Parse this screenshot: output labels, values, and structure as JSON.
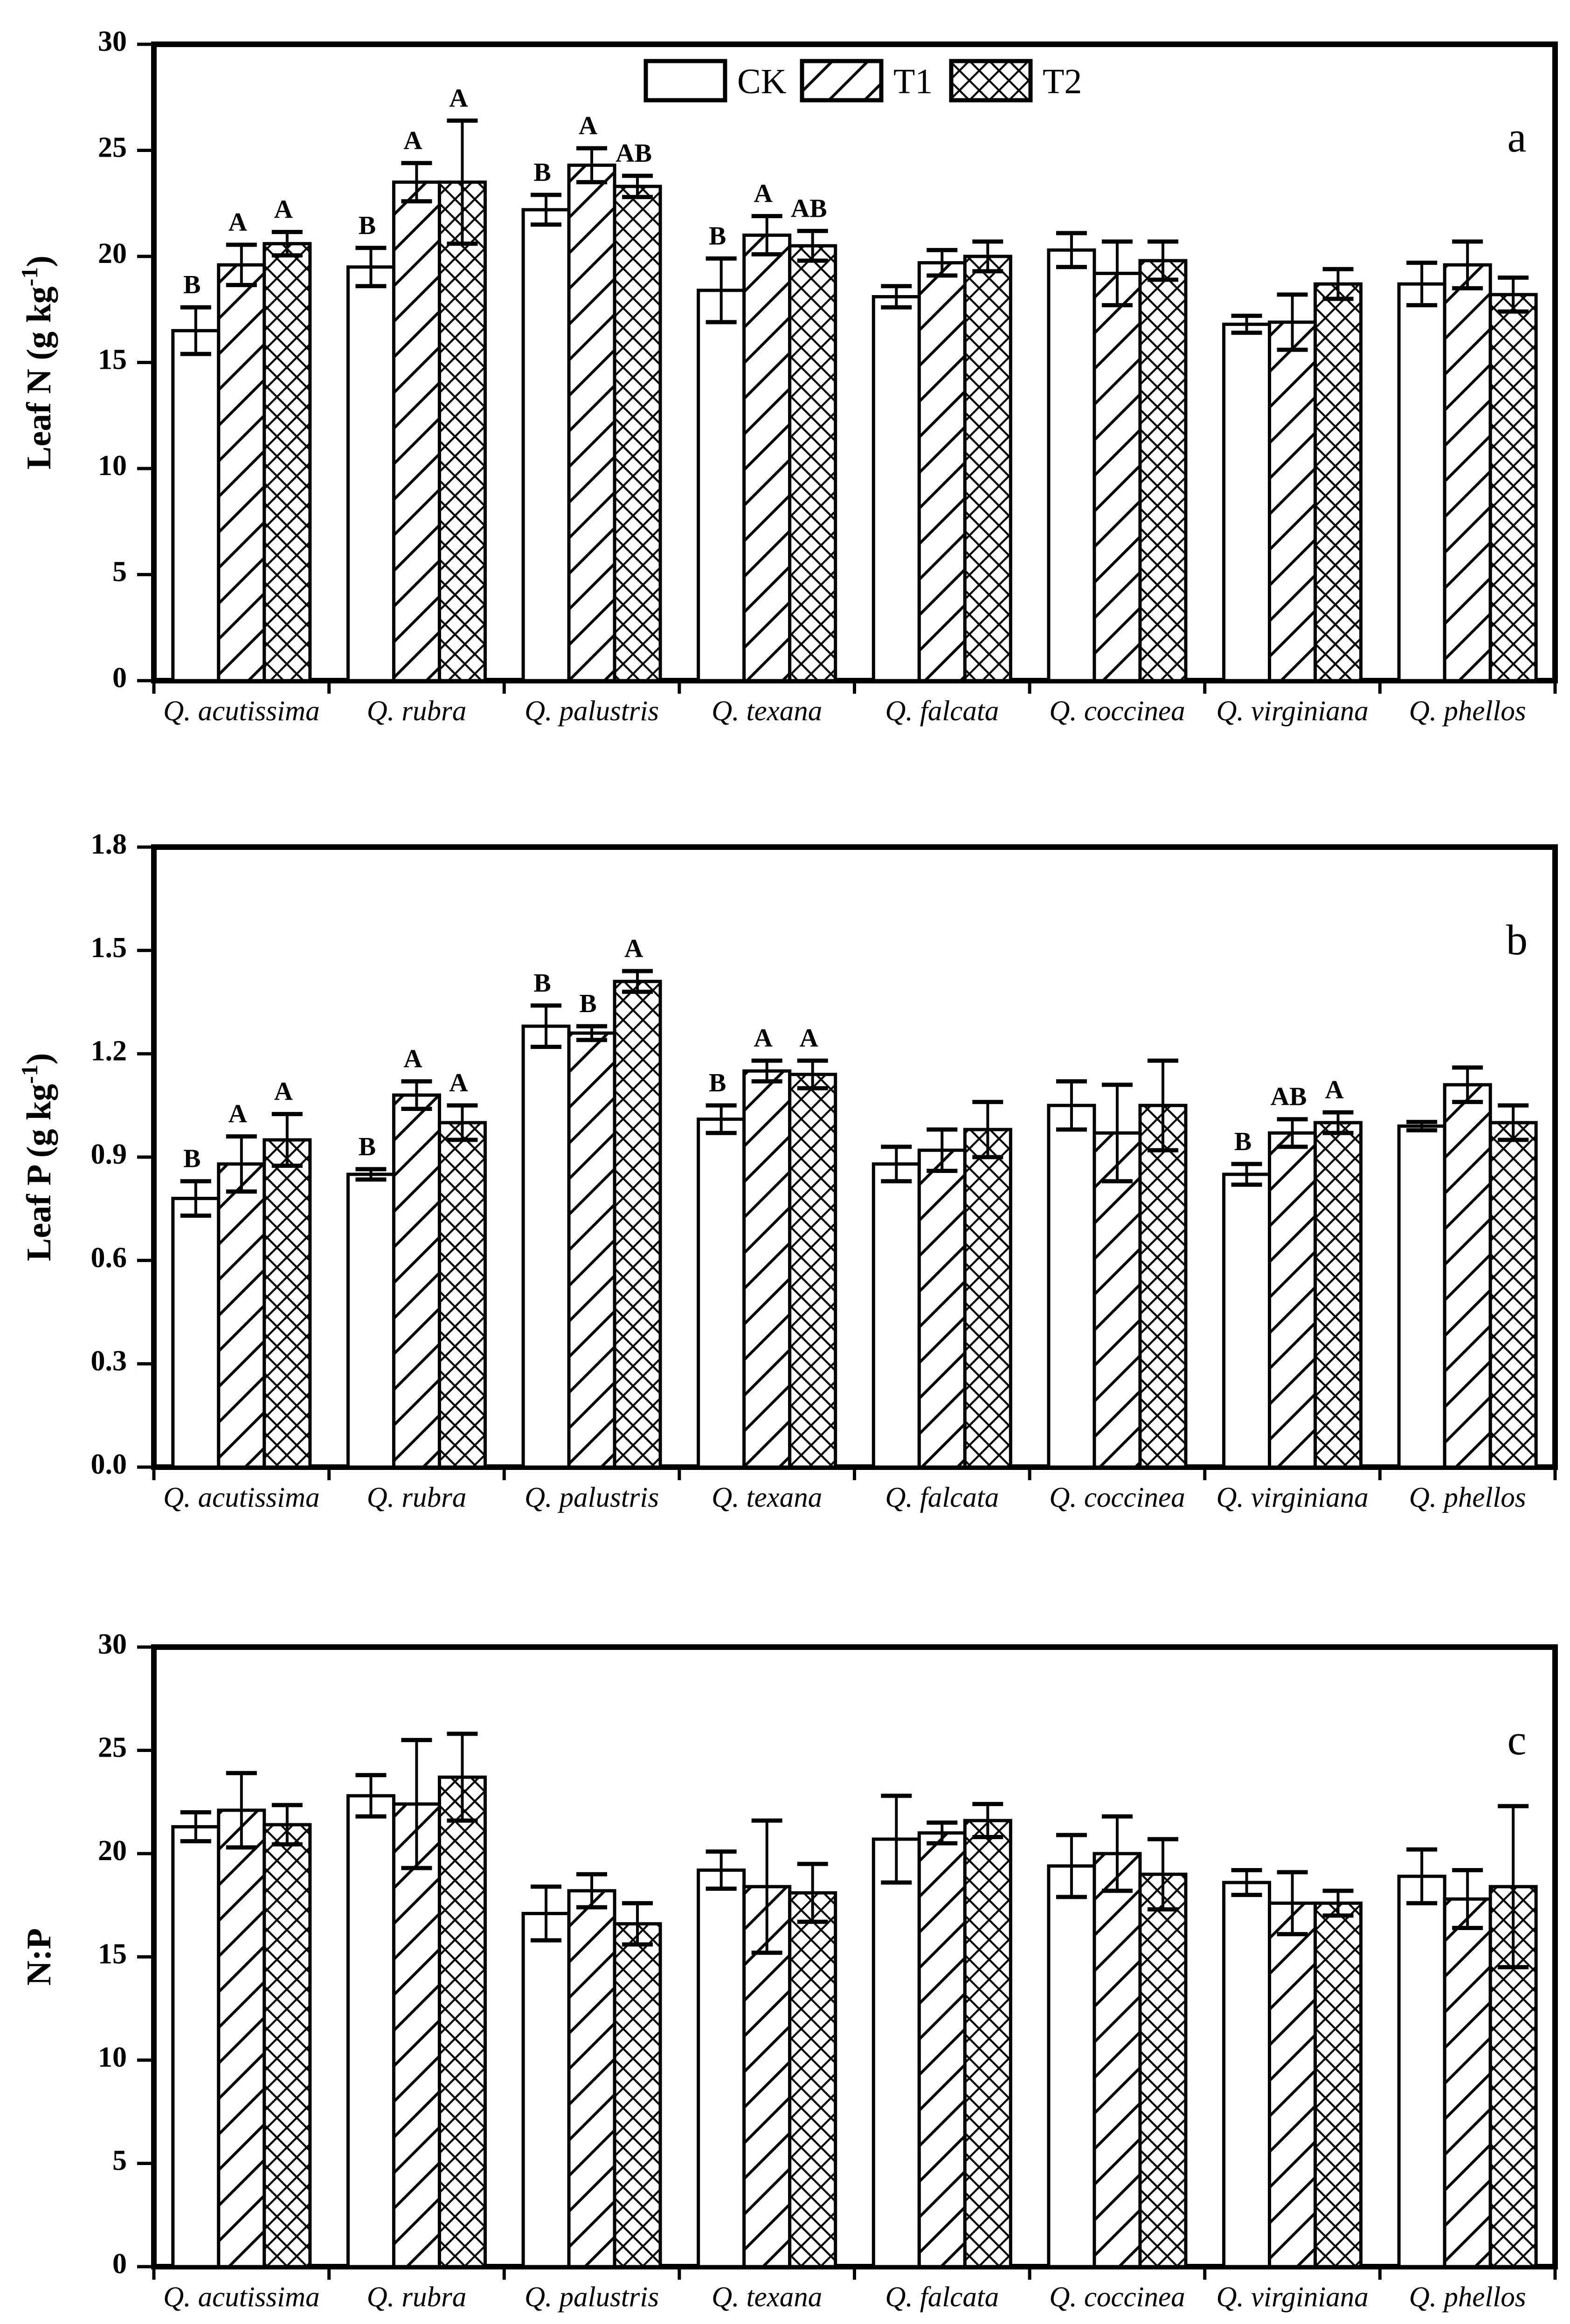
{
  "figure_kind": "three-panel grouped bar chart with error bars and significance letters",
  "colors": {
    "foreground": "#000000",
    "background": "#ffffff"
  },
  "legend": {
    "entries": [
      "CK",
      "T1",
      "T2"
    ],
    "position": "top-center-of-panel-a"
  },
  "categories": [
    "Q. acutissima",
    "Q. rubra",
    "Q. palustris",
    "Q. texana",
    "Q. falcata",
    "Q. coccinea",
    "Q. virginiana",
    "Q. phellos"
  ],
  "chart_data": [
    {
      "type": "bar",
      "panel_label": "a",
      "title": "",
      "xlabel": "",
      "ylabel": "Leaf N (g kg⁻¹)",
      "ylabel_parts": {
        "base": "Leaf N (g kg",
        "sup": "-1",
        "close": ")"
      },
      "ylim": [
        0,
        30
      ],
      "ytick_step": 5,
      "ytick_decimals": 0,
      "grid": false,
      "categories": [
        "Q. acutissima",
        "Q. rubra",
        "Q. palustris",
        "Q. texana",
        "Q. falcata",
        "Q. coccinea",
        "Q. virginiana",
        "Q. phellos"
      ],
      "series": [
        {
          "name": "CK",
          "hatch": "none",
          "values": [
            16.5,
            19.5,
            22.2,
            18.4,
            18.1,
            20.3,
            16.8,
            18.7
          ],
          "errors": [
            1.1,
            0.9,
            0.7,
            1.5,
            0.5,
            0.8,
            0.4,
            1.0
          ],
          "letters": [
            "B",
            "B",
            "B",
            "B",
            "",
            "",
            "",
            ""
          ]
        },
        {
          "name": "T1",
          "hatch": "diagonal",
          "values": [
            19.6,
            23.5,
            24.3,
            21.0,
            19.7,
            19.2,
            16.9,
            19.6
          ],
          "errors": [
            0.95,
            0.9,
            0.8,
            0.9,
            0.6,
            1.5,
            1.3,
            1.1
          ],
          "letters": [
            "A",
            "A",
            "A",
            "A",
            "",
            "",
            "",
            ""
          ]
        },
        {
          "name": "T2",
          "hatch": "crosshatch",
          "values": [
            20.6,
            23.5,
            23.3,
            20.5,
            20.0,
            19.8,
            18.7,
            18.2
          ],
          "errors": [
            0.55,
            2.9,
            0.5,
            0.7,
            0.7,
            0.9,
            0.7,
            0.8
          ],
          "letters": [
            "A",
            "A",
            "AB",
            "AB",
            "",
            "",
            "",
            ""
          ]
        }
      ],
      "show_legend": true
    },
    {
      "type": "bar",
      "panel_label": "b",
      "title": "",
      "xlabel": "",
      "ylabel": "Leaf P (g kg⁻¹)",
      "ylabel_parts": {
        "base": "Leaf P (g kg",
        "sup": "-1",
        "close": ")"
      },
      "ylim": [
        0,
        1.8
      ],
      "ytick_step": 0.3,
      "ytick_decimals": 1,
      "grid": false,
      "categories": [
        "Q. acutissima",
        "Q. rubra",
        "Q. palustris",
        "Q. texana",
        "Q. falcata",
        "Q. coccinea",
        "Q. virginiana",
        "Q. phellos"
      ],
      "series": [
        {
          "name": "CK",
          "hatch": "none",
          "values": [
            0.78,
            0.85,
            1.28,
            1.01,
            0.88,
            1.05,
            0.85,
            0.99
          ],
          "errors": [
            0.05,
            0.015,
            0.06,
            0.04,
            0.05,
            0.07,
            0.03,
            0.012
          ],
          "letters": [
            "B",
            "B",
            "B",
            "B",
            "",
            "",
            "B",
            ""
          ]
        },
        {
          "name": "T1",
          "hatch": "diagonal",
          "values": [
            0.88,
            1.08,
            1.26,
            1.15,
            0.92,
            0.97,
            0.97,
            1.11
          ],
          "errors": [
            0.08,
            0.04,
            0.02,
            0.03,
            0.06,
            0.14,
            0.04,
            0.05
          ],
          "letters": [
            "A",
            "A",
            "B",
            "A",
            "",
            "",
            "AB",
            ""
          ]
        },
        {
          "name": "T2",
          "hatch": "crosshatch",
          "values": [
            0.95,
            1.0,
            1.41,
            1.14,
            0.98,
            1.05,
            1.0,
            1.0
          ],
          "errors": [
            0.075,
            0.05,
            0.03,
            0.04,
            0.08,
            0.13,
            0.03,
            0.05
          ],
          "letters": [
            "A",
            "A",
            "A",
            "A",
            "",
            "",
            "A",
            ""
          ]
        }
      ],
      "show_legend": false
    },
    {
      "type": "bar",
      "panel_label": "c",
      "title": "",
      "xlabel": "",
      "ylabel": "N:P",
      "ylabel_parts": {
        "base": "N:P",
        "sup": "",
        "close": ""
      },
      "ylim": [
        0,
        30
      ],
      "ytick_step": 5,
      "ytick_decimals": 0,
      "grid": false,
      "categories": [
        "Q. acutissima",
        "Q. rubra",
        "Q. palustris",
        "Q. texana",
        "Q. falcata",
        "Q. coccinea",
        "Q. virginiana",
        "Q. phellos"
      ],
      "series": [
        {
          "name": "CK",
          "hatch": "none",
          "values": [
            21.3,
            22.8,
            17.1,
            19.2,
            20.7,
            19.4,
            18.6,
            18.9
          ],
          "errors": [
            0.7,
            1.0,
            1.3,
            0.9,
            2.1,
            1.5,
            0.6,
            1.3
          ],
          "letters": [
            "",
            "",
            "",
            "",
            "",
            "",
            "",
            ""
          ]
        },
        {
          "name": "T1",
          "hatch": "diagonal",
          "values": [
            22.1,
            22.4,
            18.2,
            18.4,
            21.0,
            20.0,
            17.6,
            17.8
          ],
          "errors": [
            1.8,
            3.1,
            0.8,
            3.2,
            0.5,
            1.8,
            1.5,
            1.4
          ],
          "letters": [
            "",
            "",
            "",
            "",
            "",
            "",
            "",
            ""
          ]
        },
        {
          "name": "T2",
          "hatch": "crosshatch",
          "values": [
            21.4,
            23.7,
            16.6,
            18.1,
            21.6,
            19.0,
            17.6,
            18.4
          ],
          "errors": [
            0.95,
            2.1,
            1.0,
            1.4,
            0.8,
            1.7,
            0.6,
            3.9
          ],
          "letters": [
            "",
            "",
            "",
            "",
            "",
            "",
            "",
            ""
          ]
        }
      ],
      "show_legend": false
    }
  ]
}
